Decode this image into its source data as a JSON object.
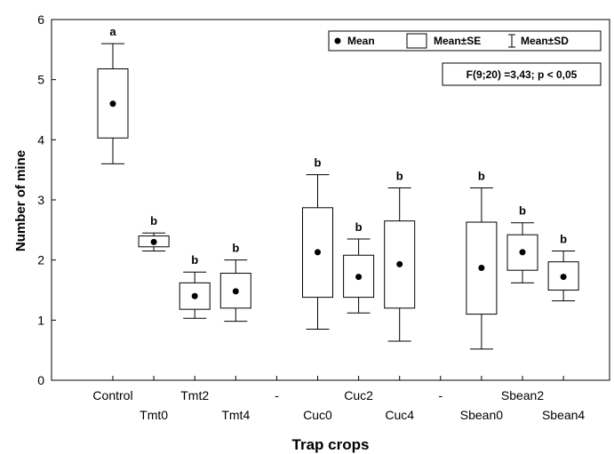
{
  "chart_data": {
    "type": "box",
    "xlabel": "Trap crops",
    "ylabel": "Number of mine",
    "ylim": [
      0,
      6
    ],
    "yticks": [
      0,
      1,
      2,
      3,
      4,
      5,
      6
    ],
    "grid": false,
    "legend_position": "top-right",
    "legend": [
      {
        "key": "mean",
        "label": "Mean"
      },
      {
        "key": "se",
        "label": "Mean±SE"
      },
      {
        "key": "sd",
        "label": "Mean±SD"
      }
    ],
    "annotation": "F(9;20) =3,43; p < 0,05",
    "categories": [
      "Control",
      "Tmt0",
      "Tmt2",
      "Tmt4",
      "-",
      "Cuc0",
      "Cuc2",
      "Cuc4",
      "-",
      "Sbean0",
      "Sbean2",
      "Sbean4"
    ],
    "groups": [
      {
        "category": "Control",
        "mean": 4.6,
        "se_low": 4.03,
        "se_high": 5.18,
        "sd_low": 3.6,
        "sd_high": 5.6,
        "letter": "a"
      },
      {
        "category": "Tmt0",
        "mean": 2.3,
        "se_low": 2.22,
        "se_high": 2.4,
        "sd_low": 2.15,
        "sd_high": 2.45,
        "letter": "b"
      },
      {
        "category": "Tmt2",
        "mean": 1.4,
        "se_low": 1.18,
        "se_high": 1.62,
        "sd_low": 1.03,
        "sd_high": 1.8,
        "letter": "b"
      },
      {
        "category": "Tmt4",
        "mean": 1.48,
        "se_low": 1.2,
        "se_high": 1.78,
        "sd_low": 0.98,
        "sd_high": 2.0,
        "letter": "b"
      },
      {
        "category": "Cuc0",
        "mean": 2.13,
        "se_low": 1.38,
        "se_high": 2.87,
        "sd_low": 0.85,
        "sd_high": 3.42,
        "letter": "b"
      },
      {
        "category": "Cuc2",
        "mean": 1.72,
        "se_low": 1.38,
        "se_high": 2.08,
        "sd_low": 1.12,
        "sd_high": 2.35,
        "letter": "b"
      },
      {
        "category": "Cuc4",
        "mean": 1.93,
        "se_low": 1.2,
        "se_high": 2.65,
        "sd_low": 0.65,
        "sd_high": 3.2,
        "letter": "b"
      },
      {
        "category": "Sbean0",
        "mean": 1.87,
        "se_low": 1.1,
        "se_high": 2.63,
        "sd_low": 0.52,
        "sd_high": 3.2,
        "letter": "b"
      },
      {
        "category": "Sbean2",
        "mean": 2.13,
        "se_low": 1.83,
        "se_high": 2.42,
        "sd_low": 1.62,
        "sd_high": 2.62,
        "letter": "b"
      },
      {
        "category": "Sbean4",
        "mean": 1.72,
        "se_low": 1.5,
        "se_high": 1.97,
        "sd_low": 1.32,
        "sd_high": 2.15,
        "letter": "b"
      }
    ]
  }
}
